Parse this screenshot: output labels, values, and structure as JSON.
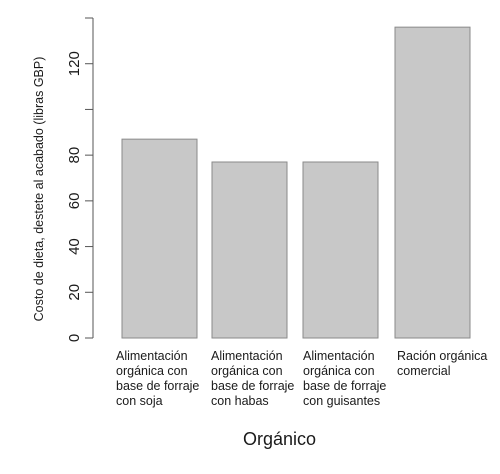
{
  "chart_data": {
    "type": "bar",
    "title": "",
    "xlabel": "Orgánico",
    "ylabel": "Costo de dieta, destete al acabado (libras GBP)",
    "categories": [
      "Alimentación orgánica con base de forraje con soja",
      "Alimentación orgánica con base de forraje con habas",
      "Alimentación orgánica con base de forraje con guisantes",
      "Ración orgánica comercial"
    ],
    "category_lines": [
      [
        "Alimentación",
        "orgánica con",
        "base de forraje",
        "con soja"
      ],
      [
        "Alimentación",
        "orgánica con",
        "base de forraje",
        "con habas"
      ],
      [
        "Alimentación",
        "orgánica con",
        "base de forraje",
        "con guisantes"
      ],
      [
        "Ración orgánica",
        "comercial"
      ]
    ],
    "values": [
      87,
      77,
      77,
      136
    ],
    "ylim": [
      0,
      140
    ],
    "yticks": [
      0,
      20,
      40,
      60,
      80,
      100,
      120,
      140
    ],
    "ytick_labels": [
      "0",
      "20",
      "40",
      "60",
      "80",
      "",
      "120",
      ""
    ],
    "grid": false,
    "bar_color": "#c8c8c8",
    "bar_edge_color": "#8a8a8a"
  }
}
